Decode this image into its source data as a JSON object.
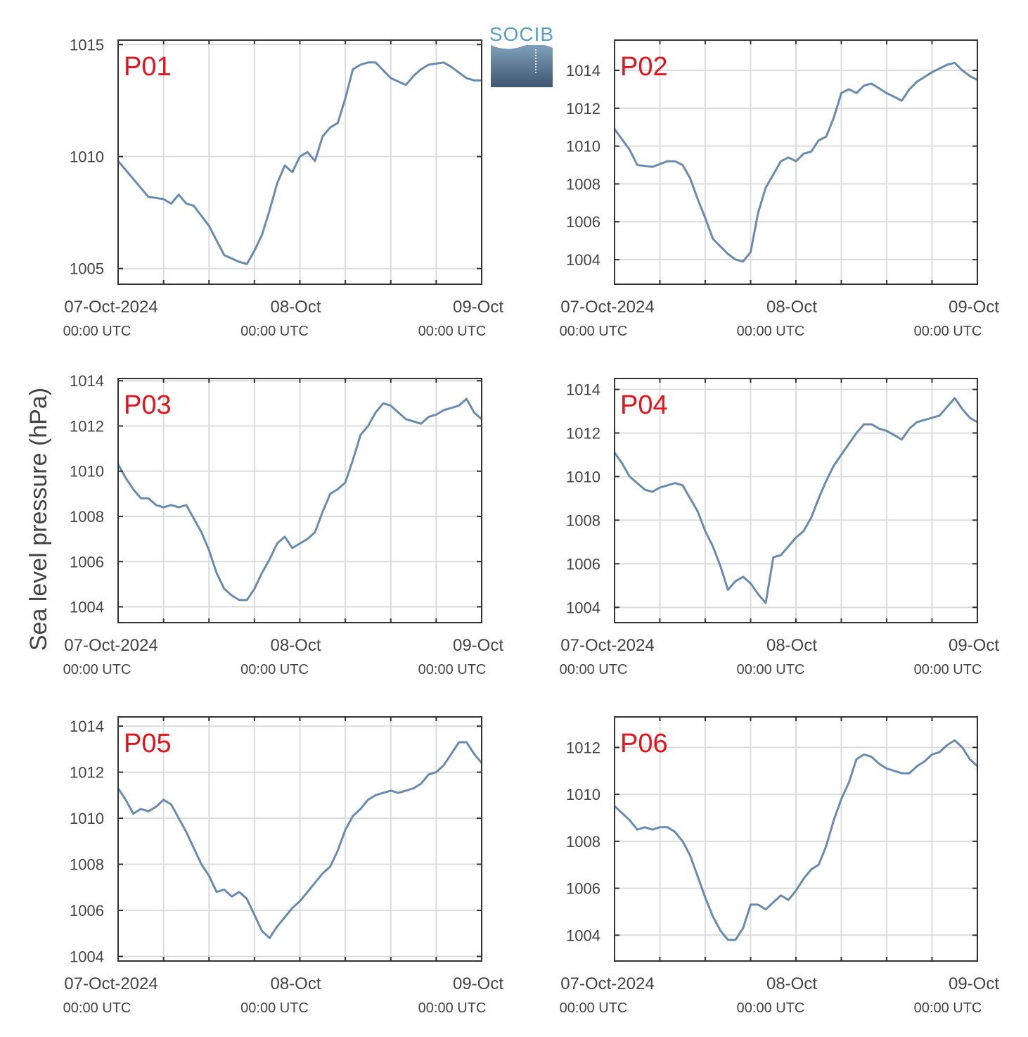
{
  "logo": {
    "text": "SOCIB",
    "color": "#5a9fc8"
  },
  "ylabel": "Sea level pressure (hPa)",
  "xtick_labels": [
    {
      "date": "07-Oct-2024",
      "time": "00:00 UTC"
    },
    {
      "date": "08-Oct",
      "time": "00:00 UTC"
    },
    {
      "date": "09-Oct",
      "time": "00:00 UTC"
    }
  ],
  "colors": {
    "line": "#6a8bb0",
    "panel_label": "#e3141b",
    "grid": "#dcdcdc",
    "axis": "#333333"
  },
  "chart_data": [
    {
      "type": "line",
      "label": "P01",
      "xlim": [
        "2024-10-07T00:00",
        "2024-10-09T00:00"
      ],
      "ylim": [
        1004.3,
        1015.2
      ],
      "yticks": [
        1005,
        1010,
        1015
      ],
      "grid": true,
      "x": [
        "2024-10-07T00:00",
        "2024-10-07T02:00",
        "2024-10-07T04:00",
        "2024-10-07T06:00",
        "2024-10-07T07:00",
        "2024-10-07T08:00",
        "2024-10-07T09:00",
        "2024-10-07T10:00",
        "2024-10-07T12:00",
        "2024-10-07T14:00",
        "2024-10-07T16:00",
        "2024-10-07T17:00",
        "2024-10-07T18:00",
        "2024-10-07T19:00",
        "2024-10-07T20:00",
        "2024-10-07T21:00",
        "2024-10-07T22:00",
        "2024-10-07T23:00",
        "2024-10-08T00:00",
        "2024-10-08T01:00",
        "2024-10-08T02:00",
        "2024-10-08T03:00",
        "2024-10-08T04:00",
        "2024-10-08T05:00",
        "2024-10-08T06:00",
        "2024-10-08T07:00",
        "2024-10-08T08:00",
        "2024-10-08T09:00",
        "2024-10-08T10:00",
        "2024-10-08T12:00",
        "2024-10-08T14:00",
        "2024-10-08T15:00",
        "2024-10-08T16:00",
        "2024-10-08T17:00",
        "2024-10-08T19:00",
        "2024-10-08T20:00",
        "2024-10-08T22:00",
        "2024-10-08T23:00",
        "2024-10-09T00:00"
      ],
      "values": [
        1009.8,
        1009.0,
        1008.2,
        1008.1,
        1007.9,
        1008.3,
        1007.9,
        1007.8,
        1006.9,
        1005.6,
        1005.3,
        1005.2,
        1005.8,
        1006.5,
        1007.6,
        1008.8,
        1009.6,
        1009.3,
        1010.0,
        1010.2,
        1009.8,
        1010.9,
        1011.3,
        1011.5,
        1012.6,
        1013.9,
        1014.1,
        1014.2,
        1014.2,
        1013.5,
        1013.2,
        1013.6,
        1013.9,
        1014.1,
        1014.2,
        1014.0,
        1013.5,
        1013.4,
        1013.4
      ]
    },
    {
      "type": "line",
      "label": "P02",
      "xlim": [
        "2024-10-07T00:00",
        "2024-10-09T00:00"
      ],
      "ylim": [
        1002.7,
        1015.6
      ],
      "yticks": [
        1004,
        1006,
        1008,
        1010,
        1012,
        1014
      ],
      "grid": true,
      "x": [
        "2024-10-07T00:00",
        "2024-10-07T02:00",
        "2024-10-07T03:00",
        "2024-10-07T05:00",
        "2024-10-07T07:00",
        "2024-10-07T08:00",
        "2024-10-07T09:00",
        "2024-10-07T10:00",
        "2024-10-07T11:00",
        "2024-10-07T12:00",
        "2024-10-07T13:00",
        "2024-10-07T14:00",
        "2024-10-07T15:00",
        "2024-10-07T16:00",
        "2024-10-07T17:00",
        "2024-10-07T18:00",
        "2024-10-07T19:00",
        "2024-10-07T20:00",
        "2024-10-07T21:00",
        "2024-10-07T22:00",
        "2024-10-07T23:00",
        "2024-10-08T00:00",
        "2024-10-08T01:00",
        "2024-10-08T02:00",
        "2024-10-08T03:00",
        "2024-10-08T04:00",
        "2024-10-08T05:00",
        "2024-10-08T06:00",
        "2024-10-08T07:00",
        "2024-10-08T08:00",
        "2024-10-08T09:00",
        "2024-10-08T10:00",
        "2024-10-08T12:00",
        "2024-10-08T14:00",
        "2024-10-08T15:00",
        "2024-10-08T16:00",
        "2024-10-08T18:00",
        "2024-10-08T20:00",
        "2024-10-08T21:00",
        "2024-10-08T22:00",
        "2024-10-08T23:00",
        "2024-10-09T00:00"
      ],
      "values": [
        1010.9,
        1009.8,
        1009.0,
        1008.9,
        1009.2,
        1009.2,
        1009.0,
        1008.3,
        1007.2,
        1006.2,
        1005.1,
        1004.7,
        1004.3,
        1004.0,
        1003.9,
        1004.4,
        1006.5,
        1007.8,
        1008.5,
        1009.2,
        1009.4,
        1009.2,
        1009.6,
        1009.7,
        1010.3,
        1010.5,
        1011.5,
        1012.8,
        1013.0,
        1012.8,
        1013.2,
        1013.3,
        1012.8,
        1012.4,
        1013.0,
        1013.4,
        1013.9,
        1014.3,
        1014.4,
        1014.0,
        1013.7,
        1013.5
      ]
    },
    {
      "type": "line",
      "label": "P03",
      "xlim": [
        "2024-10-07T00:00",
        "2024-10-09T00:00"
      ],
      "ylim": [
        1003.3,
        1014.1
      ],
      "yticks": [
        1004,
        1006,
        1008,
        1010,
        1012,
        1014
      ],
      "grid": true,
      "x": [
        "2024-10-07T00:00",
        "2024-10-07T01:00",
        "2024-10-07T02:00",
        "2024-10-07T03:00",
        "2024-10-07T04:00",
        "2024-10-07T05:00",
        "2024-10-07T06:00",
        "2024-10-07T07:00",
        "2024-10-07T08:00",
        "2024-10-07T09:00",
        "2024-10-07T10:00",
        "2024-10-07T11:00",
        "2024-10-07T12:00",
        "2024-10-07T13:00",
        "2024-10-07T14:00",
        "2024-10-07T15:00",
        "2024-10-07T16:00",
        "2024-10-07T17:00",
        "2024-10-07T18:00",
        "2024-10-07T19:00",
        "2024-10-07T20:00",
        "2024-10-07T21:00",
        "2024-10-07T22:00",
        "2024-10-07T23:00",
        "2024-10-08T00:00",
        "2024-10-08T01:00",
        "2024-10-08T02:00",
        "2024-10-08T03:00",
        "2024-10-08T04:00",
        "2024-10-08T05:00",
        "2024-10-08T06:00",
        "2024-10-08T07:00",
        "2024-10-08T08:00",
        "2024-10-08T09:00",
        "2024-10-08T10:00",
        "2024-10-08T11:00",
        "2024-10-08T12:00",
        "2024-10-08T13:00",
        "2024-10-08T14:00",
        "2024-10-08T15:00",
        "2024-10-08T16:00",
        "2024-10-08T17:00",
        "2024-10-08T18:00",
        "2024-10-08T19:00",
        "2024-10-08T20:00",
        "2024-10-08T21:00",
        "2024-10-08T22:00",
        "2024-10-08T23:00",
        "2024-10-09T00:00"
      ],
      "values": [
        1010.3,
        1009.7,
        1009.2,
        1008.8,
        1008.8,
        1008.5,
        1008.4,
        1008.5,
        1008.4,
        1008.5,
        1007.9,
        1007.3,
        1006.5,
        1005.5,
        1004.8,
        1004.5,
        1004.3,
        1004.3,
        1004.8,
        1005.5,
        1006.1,
        1006.8,
        1007.1,
        1006.6,
        1006.8,
        1007.0,
        1007.3,
        1008.2,
        1009.0,
        1009.2,
        1009.5,
        1010.5,
        1011.6,
        1012.0,
        1012.6,
        1013.0,
        1012.9,
        1012.6,
        1012.3,
        1012.2,
        1012.1,
        1012.4,
        1012.5,
        1012.7,
        1012.8,
        1012.9,
        1013.2,
        1012.6,
        1012.3
      ]
    },
    {
      "type": "line",
      "label": "P04",
      "xlim": [
        "2024-10-07T00:00",
        "2024-10-09T00:00"
      ],
      "ylim": [
        1003.3,
        1014.5
      ],
      "yticks": [
        1004,
        1006,
        1008,
        1010,
        1012,
        1014
      ],
      "grid": true,
      "x": [
        "2024-10-07T00:00",
        "2024-10-07T01:00",
        "2024-10-07T02:00",
        "2024-10-07T03:00",
        "2024-10-07T04:00",
        "2024-10-07T05:00",
        "2024-10-07T06:00",
        "2024-10-07T07:00",
        "2024-10-07T08:00",
        "2024-10-07T09:00",
        "2024-10-07T10:00",
        "2024-10-07T11:00",
        "2024-10-07T12:00",
        "2024-10-07T13:00",
        "2024-10-07T14:00",
        "2024-10-07T15:00",
        "2024-10-07T16:00",
        "2024-10-07T17:00",
        "2024-10-07T18:00",
        "2024-10-07T19:00",
        "2024-10-07T20:00",
        "2024-10-07T21:00",
        "2024-10-07T22:00",
        "2024-10-07T23:00",
        "2024-10-08T00:00",
        "2024-10-08T01:00",
        "2024-10-08T02:00",
        "2024-10-08T03:00",
        "2024-10-08T04:00",
        "2024-10-08T05:00",
        "2024-10-08T06:00",
        "2024-10-08T07:00",
        "2024-10-08T08:00",
        "2024-10-08T09:00",
        "2024-10-08T10:00",
        "2024-10-08T11:00",
        "2024-10-08T12:00",
        "2024-10-08T13:00",
        "2024-10-08T14:00",
        "2024-10-08T15:00",
        "2024-10-08T16:00",
        "2024-10-08T17:00",
        "2024-10-08T18:00",
        "2024-10-08T19:00",
        "2024-10-08T20:00",
        "2024-10-08T21:00",
        "2024-10-08T22:00",
        "2024-10-08T23:00",
        "2024-10-09T00:00"
      ],
      "values": [
        1011.1,
        1010.6,
        1010.0,
        1009.7,
        1009.4,
        1009.3,
        1009.5,
        1009.6,
        1009.7,
        1009.6,
        1009.0,
        1008.4,
        1007.5,
        1006.8,
        1005.9,
        1004.8,
        1005.2,
        1005.4,
        1005.1,
        1004.6,
        1004.2,
        1006.3,
        1006.4,
        1006.8,
        1007.2,
        1007.5,
        1008.1,
        1009.0,
        1009.8,
        1010.5,
        1011.0,
        1011.5,
        1012.0,
        1012.4,
        1012.4,
        1012.2,
        1012.1,
        1011.9,
        1011.7,
        1012.2,
        1012.5,
        1012.6,
        1012.7,
        1012.8,
        1013.2,
        1013.6,
        1013.1,
        1012.7,
        1012.5
      ]
    },
    {
      "type": "line",
      "label": "P05",
      "xlim": [
        "2024-10-07T00:00",
        "2024-10-09T00:00"
      ],
      "ylim": [
        1003.8,
        1014.4
      ],
      "yticks": [
        1004,
        1006,
        1008,
        1010,
        1012,
        1014
      ],
      "grid": true,
      "x": [
        "2024-10-07T00:00",
        "2024-10-07T01:00",
        "2024-10-07T02:00",
        "2024-10-07T03:00",
        "2024-10-07T04:00",
        "2024-10-07T05:00",
        "2024-10-07T06:00",
        "2024-10-07T07:00",
        "2024-10-07T08:00",
        "2024-10-07T09:00",
        "2024-10-07T10:00",
        "2024-10-07T11:00",
        "2024-10-07T12:00",
        "2024-10-07T13:00",
        "2024-10-07T14:00",
        "2024-10-07T15:00",
        "2024-10-07T16:00",
        "2024-10-07T17:00",
        "2024-10-07T18:00",
        "2024-10-07T19:00",
        "2024-10-07T20:00",
        "2024-10-07T21:00",
        "2024-10-07T22:00",
        "2024-10-07T23:00",
        "2024-10-08T00:00",
        "2024-10-08T01:00",
        "2024-10-08T02:00",
        "2024-10-08T03:00",
        "2024-10-08T04:00",
        "2024-10-08T05:00",
        "2024-10-08T06:00",
        "2024-10-08T07:00",
        "2024-10-08T08:00",
        "2024-10-08T09:00",
        "2024-10-08T10:00",
        "2024-10-08T11:00",
        "2024-10-08T12:00",
        "2024-10-08T13:00",
        "2024-10-08T14:00",
        "2024-10-08T15:00",
        "2024-10-08T16:00",
        "2024-10-08T17:00",
        "2024-10-08T18:00",
        "2024-10-08T19:00",
        "2024-10-08T20:00",
        "2024-10-08T21:00",
        "2024-10-08T22:00",
        "2024-10-08T23:00",
        "2024-10-09T00:00"
      ],
      "values": [
        1011.3,
        1010.8,
        1010.2,
        1010.4,
        1010.3,
        1010.5,
        1010.8,
        1010.6,
        1010.0,
        1009.4,
        1008.7,
        1008.0,
        1007.5,
        1006.8,
        1006.9,
        1006.6,
        1006.8,
        1006.5,
        1005.8,
        1005.1,
        1004.8,
        1005.3,
        1005.7,
        1006.1,
        1006.4,
        1006.8,
        1007.2,
        1007.6,
        1007.9,
        1008.6,
        1009.5,
        1010.1,
        1010.4,
        1010.8,
        1011.0,
        1011.1,
        1011.2,
        1011.1,
        1011.2,
        1011.3,
        1011.5,
        1011.9,
        1012.0,
        1012.3,
        1012.8,
        1013.3,
        1013.3,
        1012.8,
        1012.4
      ]
    },
    {
      "type": "line",
      "label": "P06",
      "xlim": [
        "2024-10-07T00:00",
        "2024-10-09T00:00"
      ],
      "ylim": [
        1002.9,
        1013.3
      ],
      "yticks": [
        1004,
        1006,
        1008,
        1010,
        1012
      ],
      "grid": true,
      "x": [
        "2024-10-07T00:00",
        "2024-10-07T01:00",
        "2024-10-07T02:00",
        "2024-10-07T03:00",
        "2024-10-07T04:00",
        "2024-10-07T05:00",
        "2024-10-07T06:00",
        "2024-10-07T07:00",
        "2024-10-07T08:00",
        "2024-10-07T09:00",
        "2024-10-07T10:00",
        "2024-10-07T11:00",
        "2024-10-07T12:00",
        "2024-10-07T13:00",
        "2024-10-07T14:00",
        "2024-10-07T15:00",
        "2024-10-07T16:00",
        "2024-10-07T17:00",
        "2024-10-07T18:00",
        "2024-10-07T19:00",
        "2024-10-07T20:00",
        "2024-10-07T21:00",
        "2024-10-07T22:00",
        "2024-10-07T23:00",
        "2024-10-08T00:00",
        "2024-10-08T01:00",
        "2024-10-08T02:00",
        "2024-10-08T03:00",
        "2024-10-08T04:00",
        "2024-10-08T05:00",
        "2024-10-08T06:00",
        "2024-10-08T07:00",
        "2024-10-08T08:00",
        "2024-10-08T09:00",
        "2024-10-08T10:00",
        "2024-10-08T11:00",
        "2024-10-08T12:00",
        "2024-10-08T13:00",
        "2024-10-08T14:00",
        "2024-10-08T15:00",
        "2024-10-08T16:00",
        "2024-10-08T17:00",
        "2024-10-08T18:00",
        "2024-10-08T19:00",
        "2024-10-08T20:00",
        "2024-10-08T21:00",
        "2024-10-08T22:00",
        "2024-10-08T23:00",
        "2024-10-09T00:00"
      ],
      "values": [
        1009.5,
        1009.2,
        1008.9,
        1008.5,
        1008.6,
        1008.5,
        1008.6,
        1008.6,
        1008.4,
        1008.0,
        1007.4,
        1006.5,
        1005.6,
        1004.8,
        1004.2,
        1003.8,
        1003.8,
        1004.3,
        1005.3,
        1005.3,
        1005.1,
        1005.4,
        1005.7,
        1005.5,
        1005.9,
        1006.4,
        1006.8,
        1007.0,
        1007.8,
        1008.9,
        1009.8,
        1010.5,
        1011.5,
        1011.7,
        1011.6,
        1011.3,
        1011.1,
        1011.0,
        1010.9,
        1010.9,
        1011.2,
        1011.4,
        1011.7,
        1011.8,
        1012.1,
        1012.3,
        1012.0,
        1011.5,
        1011.2
      ]
    }
  ]
}
